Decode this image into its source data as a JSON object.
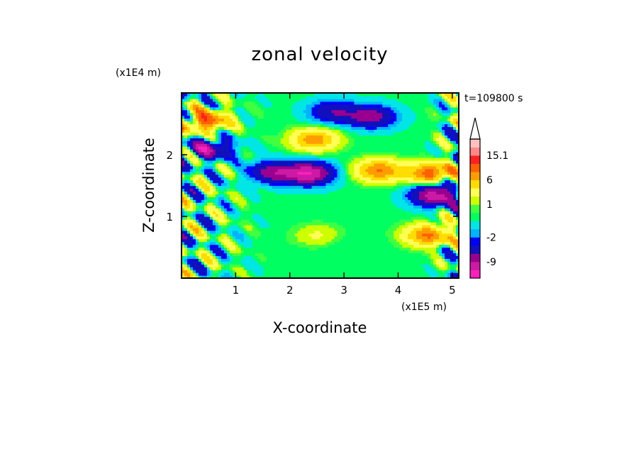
{
  "chart_data": {
    "type": "heatmap",
    "title": "zonal velocity",
    "xlabel": "X-coordinate",
    "ylabel": "Z-coordinate",
    "x_unit": "(x1E5 m)",
    "y_unit": "(x1E4 m)",
    "time_label": "t=109800 s",
    "x_ticks": [
      "1",
      "2",
      "3",
      "4",
      "5"
    ],
    "x_tick_values": [
      1,
      2,
      3,
      4,
      5
    ],
    "y_ticks": [
      "1",
      "2"
    ],
    "y_tick_values": [
      1,
      2
    ],
    "xlim": [
      0,
      5.12
    ],
    "ylim": [
      0,
      3
    ],
    "colorbar": {
      "labels": [
        "15.1",
        "6",
        "1",
        "-2",
        "-9"
      ],
      "label_values": [
        15.1,
        6,
        1,
        -2,
        -9
      ],
      "levels": [
        -16,
        -12,
        -9,
        -6,
        -3,
        -2,
        -1,
        0,
        0.5,
        1,
        2,
        4,
        6,
        8,
        11,
        15.1,
        20
      ],
      "colors": [
        "#ff1fbf",
        "#cc1aa5",
        "#99008f",
        "#1010bf",
        "#0000ff",
        "#00b4ff",
        "#00e6e6",
        "#00ff60",
        "#40ff40",
        "#ccff00",
        "#ffff55",
        "#ffdd00",
        "#ff9d00",
        "#ff6000",
        "#ff2020",
        "#ff8888",
        "#ffc0c0"
      ],
      "extend": "max"
    },
    "field_features": [
      {
        "x": 2.35,
        "z": 1.7,
        "value": -12
      },
      {
        "x": 1.7,
        "z": 1.72,
        "value": -8
      },
      {
        "x": 4.68,
        "z": 1.35,
        "value": -11
      },
      {
        "x": 3.5,
        "z": 2.62,
        "value": -8
      },
      {
        "x": 2.8,
        "z": 2.7,
        "value": -6
      },
      {
        "x": 0.5,
        "z": 2.1,
        "value": -8
      },
      {
        "x": 0.45,
        "z": 2.55,
        "value": 9
      },
      {
        "x": 2.45,
        "z": 2.25,
        "value": 7
      },
      {
        "x": 3.65,
        "z": 1.75,
        "value": 8
      },
      {
        "x": 4.6,
        "z": 1.7,
        "value": 9
      },
      {
        "x": 4.55,
        "z": 0.7,
        "value": 8
      },
      {
        "x": 2.5,
        "z": 0.7,
        "value": 2
      },
      {
        "x": 3.0,
        "z": 0.55,
        "value": -0.3
      },
      {
        "x": 3.4,
        "z": 0.9,
        "value": 0.2
      }
    ]
  }
}
